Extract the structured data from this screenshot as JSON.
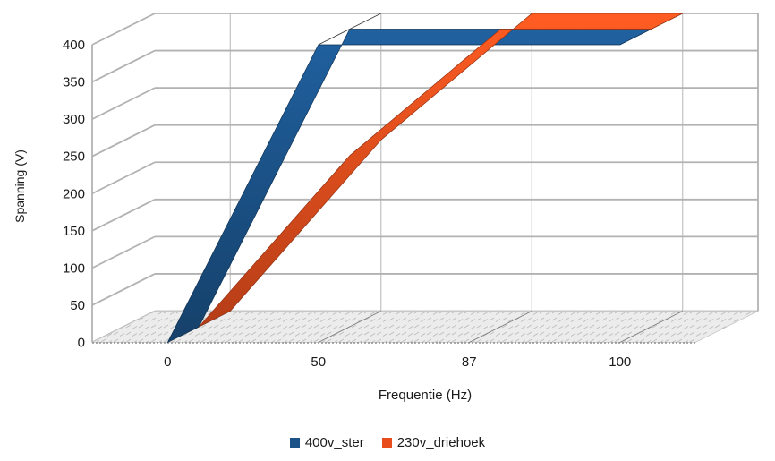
{
  "chart_data": {
    "type": "line",
    "variant": "3d-ribbon",
    "categories": [
      "0",
      "50",
      "87",
      "100"
    ],
    "series": [
      {
        "name": "400v_ster",
        "color": "#1b5288",
        "values": [
          0,
          400,
          400,
          400
        ]
      },
      {
        "name": "230v_driehoek",
        "color": "#e84e1d",
        "values": [
          0,
          230,
          400,
          400
        ]
      }
    ],
    "title": "",
    "xlabel": "Frequentie (Hz)",
    "ylabel": "Spanning (V)",
    "ylim": [
      0,
      400
    ],
    "ytick_step": 50,
    "y_ticks": [
      "0",
      "50",
      "100",
      "150",
      "200",
      "250",
      "300",
      "350",
      "400"
    ],
    "grid": true,
    "legend_position": "bottom",
    "background": "#ffffff",
    "grid_color": "#b2b2b2",
    "wall_color": "#ffffff",
    "floor_color": "#ececec"
  },
  "axes": {
    "x_title": "Frequentie (Hz)",
    "y_title": "Spanning (V)"
  },
  "legend": {
    "items": [
      {
        "label": "400v_ster",
        "color": "#1b5288"
      },
      {
        "label": "230v_driehoek",
        "color": "#e84e1d"
      }
    ]
  }
}
